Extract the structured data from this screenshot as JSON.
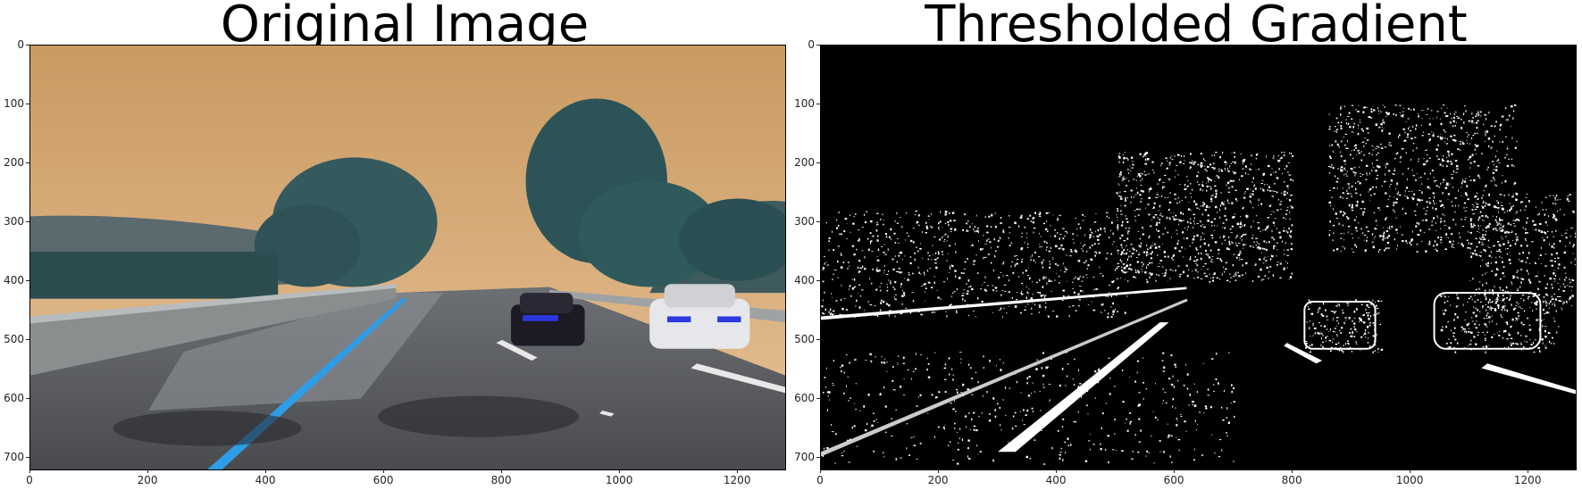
{
  "panels": [
    {
      "title": "Original Image",
      "image": "road-photo",
      "x_ticks": [
        "0",
        "200",
        "400",
        "600",
        "800",
        "1000",
        "1200"
      ],
      "y_ticks": [
        "0",
        "100",
        "200",
        "300",
        "400",
        "500",
        "600",
        "700"
      ],
      "x_range": [
        0,
        1280
      ],
      "y_range": [
        720,
        0
      ]
    },
    {
      "title": "Thresholded Gradient",
      "image": "binary-gradient",
      "x_ticks": [
        "0",
        "200",
        "400",
        "600",
        "800",
        "1000",
        "1200"
      ],
      "y_ticks": [
        "0",
        "100",
        "200",
        "300",
        "400",
        "500",
        "600",
        "700"
      ],
      "x_range": [
        0,
        1280
      ],
      "y_range": [
        720,
        0
      ]
    }
  ]
}
